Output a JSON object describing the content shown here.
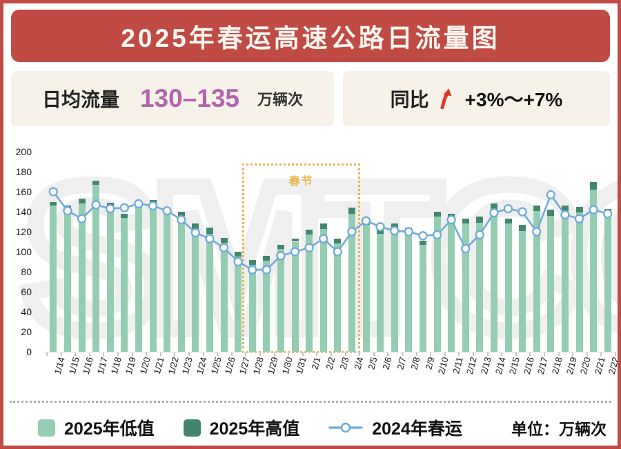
{
  "page": {
    "title": "2025年春运高速公路日流量图"
  },
  "stats": {
    "daily_volume": {
      "label": "日均流量",
      "value": "130–135",
      "unit": "万辆次"
    },
    "yoy": {
      "label": "同比",
      "arrow_icon": "up-arrow",
      "range": "+3%～+7%"
    }
  },
  "watermark_text": "SMTCC",
  "legend": {
    "items": [
      {
        "label": "2025年低值",
        "type": "bar",
        "color": "#95cdb2"
      },
      {
        "label": "2025年高值",
        "type": "bar",
        "color": "#43866e"
      },
      {
        "label": "2024年春运",
        "type": "line",
        "color": "#6fabda"
      }
    ],
    "unit_note": "单位：万辆次"
  },
  "colors": {
    "frame": "#c04b44",
    "banner": "#c04b44",
    "card_bg": "#f6f1e9",
    "value_purple": "#b264ac",
    "arrow_red": "#e2362c",
    "bar_low": "#95cdb2",
    "bar_high": "#43866e",
    "line": "#6fabda",
    "gold": "#e8b64c",
    "watermark": "#efefef"
  },
  "chart_data": {
    "type": "bar",
    "title": "2025年春运高速公路日流量图",
    "unit": "万辆次",
    "categories": [
      "1/14",
      "1/15",
      "1/16",
      "1/17",
      "1/18",
      "1/19",
      "1/20",
      "1/21",
      "1/22",
      "1/23",
      "1/24",
      "1/25",
      "1/26",
      "1/27",
      "1/28",
      "1/29",
      "1/30",
      "1/31",
      "2/1",
      "2/2",
      "2/3",
      "2/4",
      "2/5",
      "2/6",
      "2/7",
      "2/8",
      "2/9",
      "2/10",
      "2/11",
      "2/12",
      "2/13",
      "2/14",
      "2/15",
      "2/16",
      "2/17",
      "2/18",
      "2/19",
      "2/20",
      "2/21",
      "2/22"
    ],
    "series": [
      {
        "name": "2025年低值",
        "kind": "bar",
        "color": "#95cdb2",
        "values": [
          146,
          142,
          148,
          167,
          145,
          134,
          147,
          148,
          140,
          136,
          123,
          118,
          109,
          95,
          87,
          91,
          103,
          110,
          117,
          123,
          108,
          138,
          127,
          118,
          123,
          118,
          107,
          135,
          133,
          128,
          129,
          142,
          128,
          121,
          141,
          136,
          141,
          139,
          162,
          139
        ]
      },
      {
        "name": "2025年高值",
        "kind": "bar-cap-stacked-on-low",
        "color": "#43866e",
        "values": [
          150,
          146,
          153,
          171,
          149,
          138,
          151,
          152,
          144,
          140,
          128,
          124,
          114,
          100,
          92,
          96,
          107,
          113,
          122,
          128,
          113,
          144,
          132,
          123,
          128,
          124,
          111,
          140,
          138,
          133,
          135,
          148,
          133,
          127,
          146,
          142,
          146,
          145,
          170,
          143
        ]
      },
      {
        "name": "2024年春运",
        "kind": "line",
        "color": "#6fabda",
        "values": [
          160,
          141,
          133,
          147,
          143,
          144,
          148,
          146,
          141,
          132,
          119,
          113,
          104,
          90,
          82,
          82,
          96,
          100,
          104,
          113,
          100,
          120,
          131,
          125,
          121,
          120,
          116,
          117,
          132,
          103,
          117,
          139,
          143,
          140,
          120,
          157,
          137,
          133,
          142,
          138
        ]
      }
    ],
    "ylim": [
      0,
      200
    ],
    "yticks": [
      0,
      20,
      40,
      60,
      80,
      100,
      120,
      140,
      160,
      180,
      200
    ],
    "grid": false,
    "legend_position": "bottom",
    "annotation_box": {
      "label": "春节",
      "from": "1/28",
      "to": "2/4"
    }
  }
}
